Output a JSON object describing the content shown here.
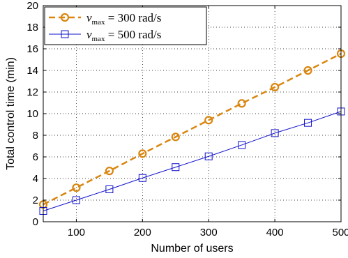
{
  "chart_data": {
    "type": "line",
    "xlabel": "Number of users",
    "ylabel": "Total control time (min)",
    "xlim": [
      50,
      500
    ],
    "ylim": [
      0,
      20
    ],
    "xticks": [
      100,
      200,
      300,
      400,
      500
    ],
    "yticks": [
      0,
      2,
      4,
      6,
      8,
      10,
      12,
      14,
      16,
      18,
      20
    ],
    "grid": true,
    "legend_position": "top-left",
    "x": [
      50,
      100,
      150,
      200,
      250,
      300,
      350,
      400,
      450,
      500
    ],
    "series": [
      {
        "name_var": "v",
        "name_sub": "max",
        "name_rest": " = 300 rad/s",
        "color": "#d9860f",
        "line_style": "dashed",
        "marker": "circle",
        "values": [
          1.6,
          3.15,
          4.7,
          6.3,
          7.85,
          9.4,
          10.95,
          12.45,
          14.0,
          15.55
        ]
      },
      {
        "name_var": "v",
        "name_sub": "max",
        "name_rest": " = 500 rad/s",
        "color": "#1010cc",
        "line_style": "solid",
        "marker": "square",
        "values": [
          1.0,
          2.0,
          3.0,
          4.05,
          5.05,
          6.05,
          7.1,
          8.2,
          9.15,
          10.2
        ]
      }
    ]
  }
}
